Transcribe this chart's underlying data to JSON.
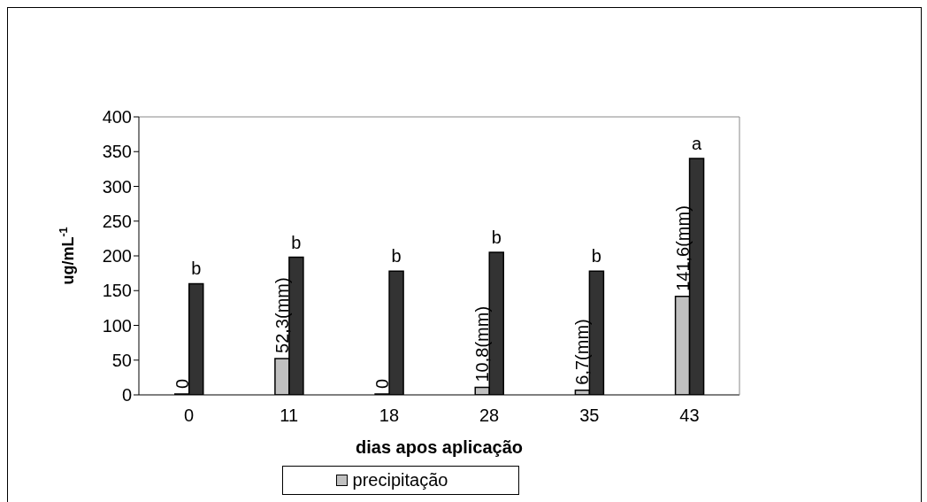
{
  "chart_data": {
    "type": "bar",
    "xlabel": "dias apos aplicação",
    "ylabel": "ug/mL$^{-1}$",
    "categories": [
      "0",
      "11",
      "18",
      "28",
      "35",
      "43"
    ],
    "series": [
      {
        "name": "precipitação",
        "color": "#c0c0c0",
        "values": [
          0,
          52.3,
          0,
          10.8,
          6.7,
          141.6
        ],
        "value_labels": [
          "0",
          "52,3(mm)",
          "0",
          "10,8(mm)",
          "6,7(mm)",
          "141,6(mm)"
        ]
      },
      {
        "color": "#333333",
        "values": [
          160,
          198,
          178,
          205,
          178,
          340
        ],
        "value_labels": [
          "b",
          "b",
          "b",
          "b",
          "b",
          "a"
        ]
      }
    ],
    "ylim": [
      0,
      400
    ],
    "yticks": [
      0,
      50,
      100,
      150,
      200,
      250,
      300,
      350,
      400
    ],
    "grid": false,
    "legend": "bottom"
  }
}
